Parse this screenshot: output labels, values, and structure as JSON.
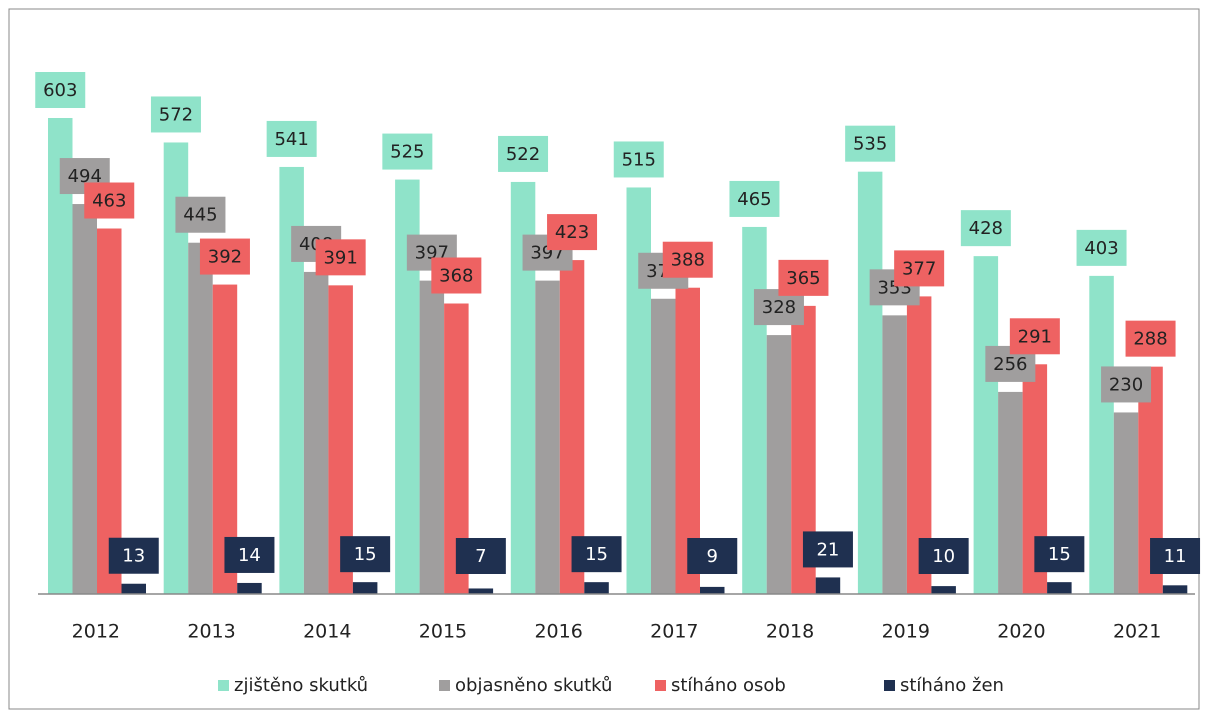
{
  "chart_data": {
    "type": "bar",
    "categories": [
      "2012",
      "2013",
      "2014",
      "2015",
      "2016",
      "2017",
      "2018",
      "2019",
      "2020",
      "2021"
    ],
    "series": [
      {
        "name": "zjištěno skutků",
        "color": "#8fe3c9",
        "values": [
          603,
          572,
          541,
          525,
          522,
          515,
          465,
          535,
          428,
          403
        ]
      },
      {
        "name": "objasněno skutků",
        "color": "#a09e9e",
        "values": [
          494,
          445,
          408,
          397,
          397,
          374,
          328,
          353,
          256,
          230
        ]
      },
      {
        "name": "stíháno osob",
        "color": "#ee6262",
        "values": [
          463,
          392,
          391,
          368,
          423,
          388,
          365,
          377,
          291,
          288
        ]
      },
      {
        "name": "stíháno žen",
        "color": "#1f3050",
        "values": [
          13,
          14,
          15,
          7,
          15,
          9,
          21,
          10,
          15,
          11
        ]
      }
    ],
    "legend": "bottom"
  }
}
